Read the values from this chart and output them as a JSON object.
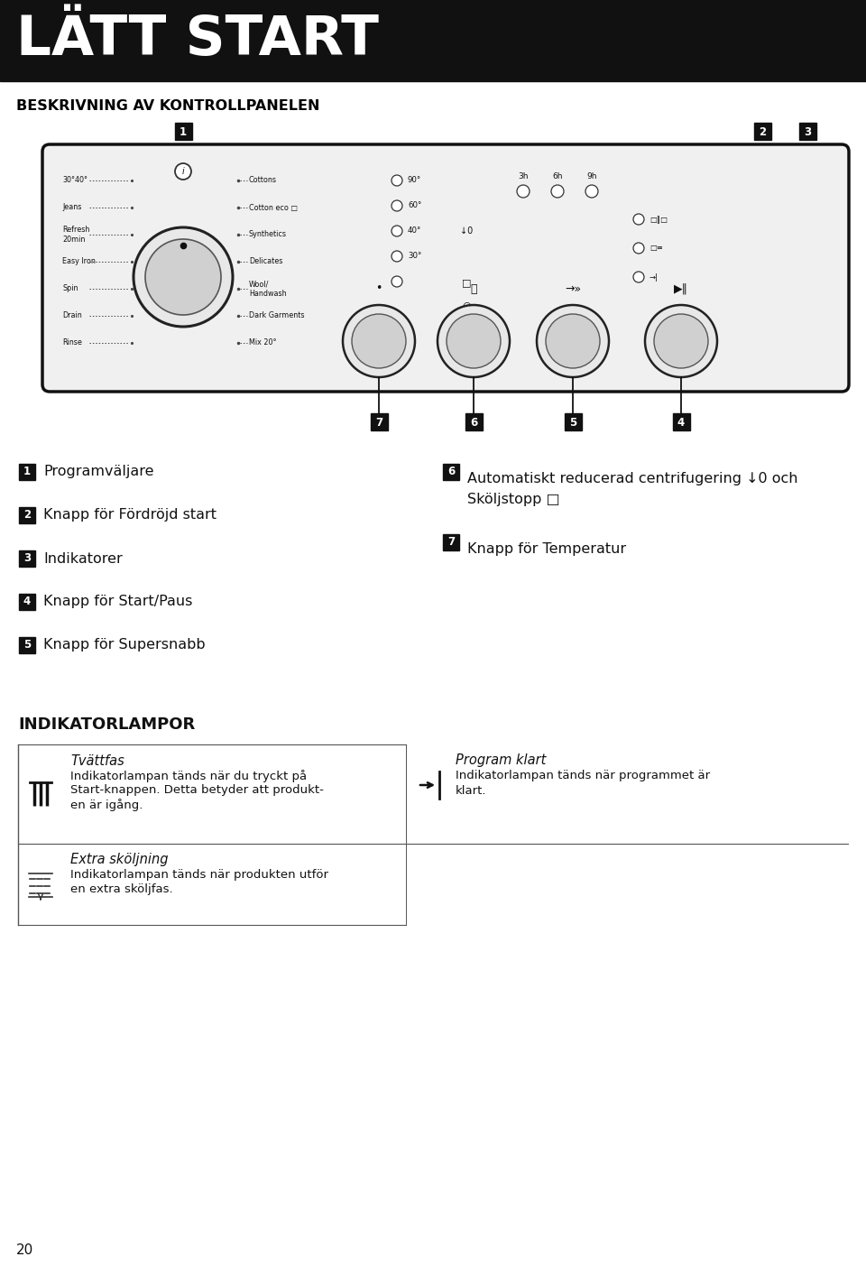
{
  "title": "LÄTT START",
  "subtitle": "BESKRIVNING AV KONTROLLPANELEN",
  "bg_color": "#ffffff",
  "header_bg": "#111111",
  "header_text_color": "#ffffff",
  "page_number": "20",
  "label_bg": "#111111",
  "label_text": "#ffffff",
  "prog_labels": [
    "30°40°",
    "Jeans",
    "Refresh\n20min",
    "Easy Iron",
    "Spin",
    "Drain",
    "Rinse"
  ],
  "right_labels": [
    "Cottons",
    "Cotton eco □",
    "Synthetics",
    "Delicates",
    "Wool/\nHandwash",
    "Dark Garments",
    "Mix 20°"
  ],
  "temp_labels": [
    "90°",
    "60°",
    "40°",
    "30°",
    ""
  ],
  "items_left": [
    {
      "num": "1",
      "text": "Programväljare"
    },
    {
      "num": "2",
      "text": "Knapp för Fördröjd start"
    },
    {
      "num": "3",
      "text": "Indikatorer"
    },
    {
      "num": "4",
      "text": "Knapp för Start/Paus"
    },
    {
      "num": "5",
      "text": "Knapp för Supersnabb"
    }
  ],
  "items_right": [
    {
      "num": "6",
      "text": "Automatiskt reducerad centrifugering ↓0 och\nSköljstopp □"
    },
    {
      "num": "7",
      "text": "Knapp för Temperatur"
    }
  ],
  "ind_title": "INDIKATORLAMPOR",
  "ind_items": [
    {
      "icon": "wash",
      "title": "Tvättfas",
      "lines": [
        "Indikatorlampan tänds när du tryckt på",
        "Start-knappen. Detta betyder att produkt-",
        "en är igång."
      ]
    },
    {
      "icon": "rinse",
      "title": "Extra sköljning",
      "lines": [
        "Indikatorlampan tänds när produkten utför",
        "en extra sköljfas."
      ]
    }
  ],
  "ind_right": {
    "title": "Program klart",
    "lines": [
      "Indikatorlampan tänds när programmet är",
      "klart."
    ]
  }
}
